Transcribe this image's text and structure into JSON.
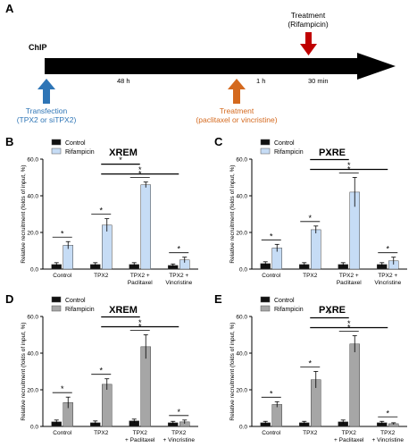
{
  "timeline": {
    "panel_letter": "A",
    "chip_label": "ChIP",
    "interval_1": "48 h",
    "interval_2": "1 h",
    "interval_3": "30 min",
    "transfection_title": "Transfection",
    "transfection_detail": "(TPX2 or siTPX2)",
    "treatment1_title": "Treatment",
    "treatment1_detail": "(paclitaxel or vincristine)",
    "treatment2_title": "Treatment",
    "treatment2_detail": "(Rifampicin)",
    "colors": {
      "transfection": "#2e75b6",
      "treatment1": "#d4691e",
      "treatment2": "#c00000"
    }
  },
  "chart_data": [
    {
      "id": "B",
      "panel_letter": "B",
      "type": "bar",
      "title": "XREM",
      "ylabel": "Relative recruitment (folds of input, %)",
      "ylim": [
        0,
        60
      ],
      "yticks": [
        "0.0",
        "20.0",
        "40.0",
        "60.0"
      ],
      "categories": [
        "Control",
        "TPX2",
        "TPX2 + Paclitaxel",
        "TPX2 + Vincristine"
      ],
      "category_lines": [
        [
          "Control"
        ],
        [
          "TPX2"
        ],
        [
          "TPX2 +",
          "Paclitaxel"
        ],
        [
          "TPX2 +",
          "Vincristine"
        ]
      ],
      "legend_position": "top-left",
      "series": [
        {
          "name": "Control",
          "values": [
            2.5,
            2.5,
            2.5,
            2.0
          ],
          "errors": [
            1.0,
            1.0,
            1.0,
            0.8
          ],
          "color": "#111111"
        },
        {
          "name": "Rifampicin",
          "values": [
            13,
            24,
            46,
            5
          ],
          "errors": [
            2.0,
            3.5,
            1.5,
            1.5
          ],
          "color": "#c6dcf5"
        }
      ],
      "significance": [
        {
          "group": 0,
          "label": "*"
        },
        {
          "group": 1,
          "label": "*"
        },
        {
          "group": 2,
          "label": "*"
        },
        {
          "group": 3,
          "label": "*"
        }
      ],
      "comparisons": [
        {
          "from": 1,
          "to": 2,
          "label": "*"
        },
        {
          "from": 1,
          "to": 3,
          "label": "*"
        }
      ]
    },
    {
      "id": "C",
      "panel_letter": "C",
      "type": "bar",
      "title": "PXRE",
      "ylabel": "Relative recruitment (folds of input, %)",
      "ylim": [
        0,
        60
      ],
      "yticks": [
        "0.0",
        "20.0",
        "40.0",
        "60.0"
      ],
      "categories": [
        "Control",
        "TPX2",
        "TPX2 + Paclitaxel",
        "TPX2 + Vincristine"
      ],
      "category_lines": [
        [
          "Control"
        ],
        [
          "TPX2"
        ],
        [
          "TPX2 +",
          "Paclitaxel"
        ],
        [
          "TPX2 +",
          "Vincristine"
        ]
      ],
      "legend_position": "top-left",
      "series": [
        {
          "name": "Control",
          "values": [
            3,
            2.5,
            2.5,
            2.5
          ],
          "errors": [
            1.0,
            1.0,
            1.0,
            1.0
          ],
          "color": "#111111"
        },
        {
          "name": "Rifampicin",
          "values": [
            11.5,
            21.5,
            42,
            4.5
          ],
          "errors": [
            2.0,
            2.0,
            8.0,
            2.0
          ],
          "color": "#c6dcf5"
        }
      ],
      "significance": [
        {
          "group": 0,
          "label": "*"
        },
        {
          "group": 1,
          "label": "*"
        },
        {
          "group": 2,
          "label": "*"
        },
        {
          "group": 3,
          "label": "*"
        }
      ],
      "comparisons": [
        {
          "from": 1,
          "to": 2,
          "label": "*"
        },
        {
          "from": 1,
          "to": 3,
          "label": "*"
        }
      ]
    },
    {
      "id": "D",
      "panel_letter": "D",
      "type": "bar",
      "title": "XREM",
      "ylabel": "Relative recruitment (folds of input, %)",
      "ylim": [
        0,
        60
      ],
      "yticks": [
        "0.0",
        "20.0",
        "40.0",
        "60.0"
      ],
      "categories": [
        "Control",
        "TPX2",
        "TPX2 + Paclitaxel",
        "TPX2 + Vincristine"
      ],
      "category_lines": [
        [
          "Control"
        ],
        [
          "TPX2"
        ],
        [
          "TPX2",
          "+ Paclitaxel"
        ],
        [
          "TPX2",
          "+ Vincristine"
        ]
      ],
      "legend_position": "top-left",
      "series": [
        {
          "name": "Control",
          "values": [
            2.5,
            2.0,
            3.0,
            2.0
          ],
          "errors": [
            1.0,
            1.0,
            1.0,
            0.8
          ],
          "color": "#111111"
        },
        {
          "name": "Rifampicin",
          "values": [
            13,
            23,
            43.5,
            2.5
          ],
          "errors": [
            3.0,
            3.0,
            6.5,
            1.0
          ],
          "color": "#a6a6a6"
        }
      ],
      "significance": [
        {
          "group": 0,
          "label": "*"
        },
        {
          "group": 1,
          "label": "*"
        },
        {
          "group": 2,
          "label": "*"
        },
        {
          "group": 3,
          "label": "*"
        }
      ],
      "comparisons": [
        {
          "from": 1,
          "to": 2,
          "label": "*"
        },
        {
          "from": 1,
          "to": 3,
          "label": "*"
        }
      ]
    },
    {
      "id": "E",
      "panel_letter": "E",
      "type": "bar",
      "title": "PXRE",
      "ylabel": "Relative recruitment (folds of input, %)",
      "ylim": [
        0,
        60
      ],
      "yticks": [
        "0.0",
        "20.0",
        "40.0",
        "60.0"
      ],
      "categories": [
        "Control",
        "TPX2",
        "TPX2 + Paclitaxel",
        "TPX2 + Vincristine"
      ],
      "category_lines": [
        [
          "Control"
        ],
        [
          "TPX2"
        ],
        [
          "TPX2",
          "+ Paclitaxel"
        ],
        [
          "TPX2",
          "+ Vincristine"
        ]
      ],
      "legend_position": "top-left",
      "series": [
        {
          "name": "Control",
          "values": [
            2.0,
            2.0,
            2.5,
            2.0
          ],
          "errors": [
            0.8,
            0.8,
            1.0,
            0.8
          ],
          "color": "#111111"
        },
        {
          "name": "Rifampicin",
          "values": [
            12,
            25.5,
            45,
            1.5
          ],
          "errors": [
            1.5,
            4.5,
            4.5,
            0.5
          ],
          "color": "#a6a6a6"
        }
      ],
      "significance": [
        {
          "group": 0,
          "label": "*"
        },
        {
          "group": 1,
          "label": "*"
        },
        {
          "group": 2,
          "label": "*"
        },
        {
          "group": 3,
          "label": "*"
        }
      ],
      "comparisons": [
        {
          "from": 1,
          "to": 2,
          "label": "*"
        },
        {
          "from": 1,
          "to": 3,
          "label": "*"
        }
      ]
    }
  ]
}
